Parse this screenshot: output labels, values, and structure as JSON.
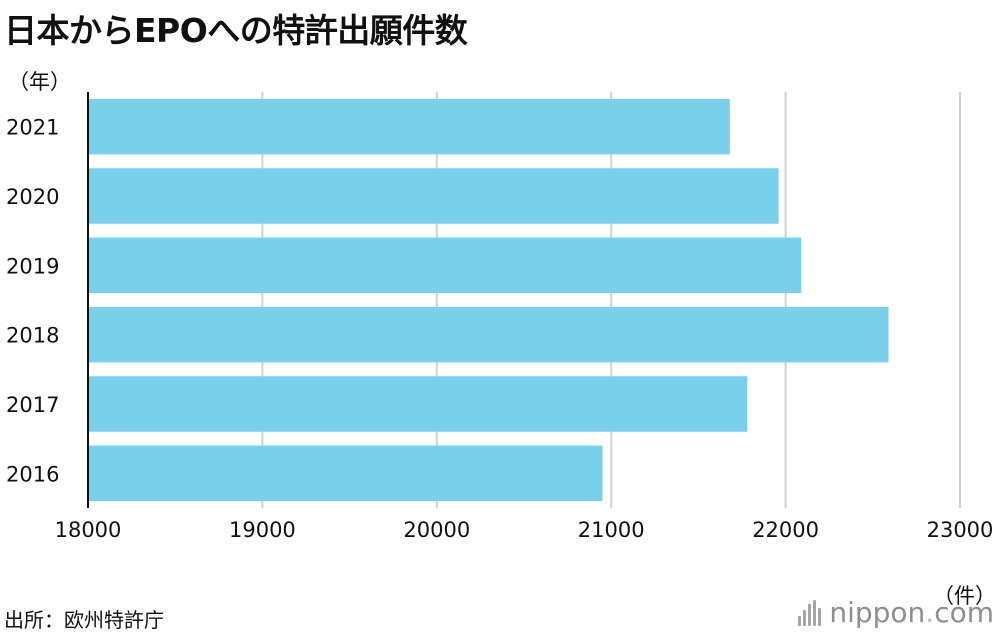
{
  "title": "日本からEPOへの特許出願件数",
  "source": "出所：欧州特許庁",
  "logo": {
    "brand": "nippon",
    "dot": ".",
    "suffix": "com"
  },
  "colors": {
    "bar": "#78D0EA",
    "grid": "#d2d2d2",
    "axis": "#111111"
  },
  "chart_data": {
    "type": "bar",
    "orientation": "horizontal",
    "categories": [
      "2021",
      "2020",
      "2019",
      "2018",
      "2017",
      "2016"
    ],
    "values": [
      21680,
      21960,
      22090,
      22590,
      21780,
      20950
    ],
    "xlim": [
      18000,
      23000
    ],
    "xticks": [
      "18000",
      "19000",
      "20000",
      "21000",
      "22000",
      "23000"
    ],
    "xlabel": "（件）",
    "ylabel": "（年）",
    "grid": "vertical"
  }
}
